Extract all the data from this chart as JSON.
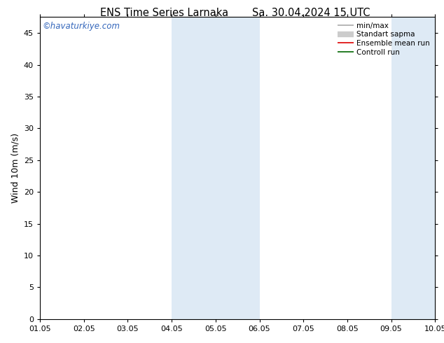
{
  "title_left": "ENS Time Series Larnaka",
  "title_right": "Sa. 30.04.2024 15 UTC",
  "ylabel": "Wind 10m (m/s)",
  "watermark": "©havaturkiye.com",
  "xlim_start": 0,
  "xlim_end": 9,
  "ylim": [
    0,
    47.5
  ],
  "yticks": [
    0,
    5,
    10,
    15,
    20,
    25,
    30,
    35,
    40,
    45
  ],
  "xtick_labels": [
    "01.05",
    "02.05",
    "03.05",
    "04.05",
    "05.05",
    "06.05",
    "07.05",
    "08.05",
    "09.05",
    "10.05"
  ],
  "shaded_regions": [
    {
      "xstart": 3.0,
      "xend": 5.0,
      "color": "#deeaf5"
    },
    {
      "xstart": 8.0,
      "xend": 9.0,
      "color": "#deeaf5"
    }
  ],
  "legend_items": [
    {
      "label": "min/max",
      "color": "#aaaaaa",
      "lw": 1.2
    },
    {
      "label": "Standart sapma",
      "color": "#cccccc",
      "lw": 6
    },
    {
      "label": "Ensemble mean run",
      "color": "#dd0000",
      "lw": 1.2
    },
    {
      "label": "Controll run",
      "color": "#006600",
      "lw": 1.2
    }
  ],
  "bg_color": "#ffffff",
  "watermark_color": "#3366bb",
  "title_fontsize": 10.5,
  "ylabel_fontsize": 9,
  "tick_fontsize": 8,
  "legend_fontsize": 7.5,
  "watermark_fontsize": 8.5
}
